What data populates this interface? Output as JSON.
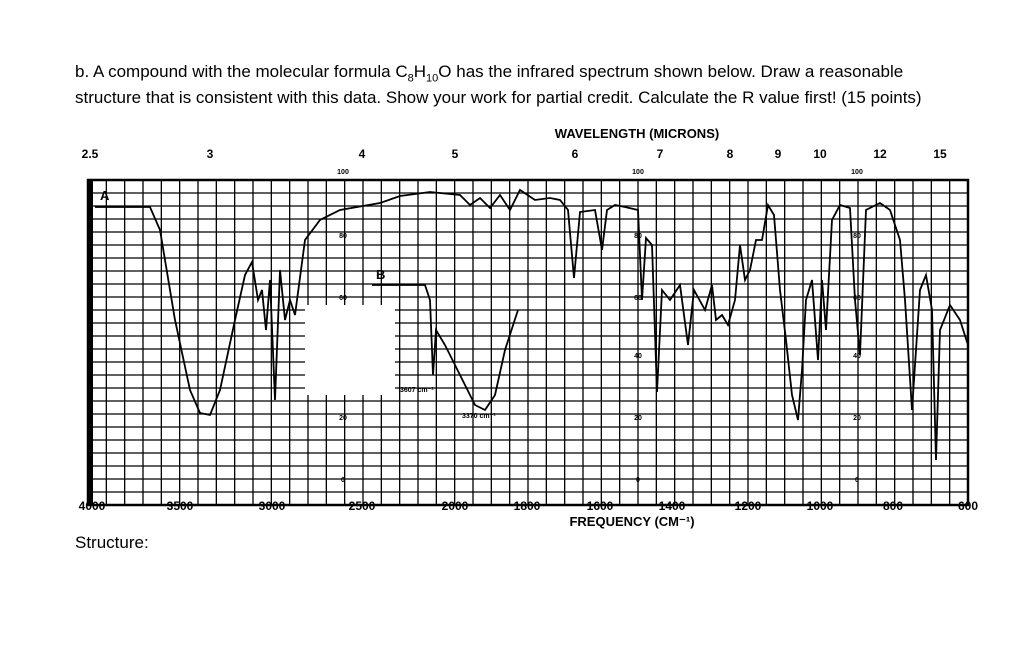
{
  "question": {
    "before": "b. A compound with the molecular formula",
    "formula": [
      "C",
      "8",
      "H",
      "10",
      "O"
    ],
    "after": "has the infrared spectrum shown below. Draw a reasonable structure that is consistent with this data. Show your work for partial credit. Calculate the R value first! (15 points)"
  },
  "spectrum": {
    "top_label": "WAVELENGTH (MICRONS)",
    "wavelength_ticks": [
      "2.5",
      "3",
      "4",
      "5",
      "6",
      "7",
      "8",
      "9",
      "10",
      "12",
      "15"
    ],
    "bottom_label": "FREQUENCY (CM⁻¹)",
    "frequency_ticks": [
      "4000",
      "3500",
      "3000",
      "2500",
      "2000",
      "1800",
      "1600",
      "1400",
      "1200",
      "1000",
      "800",
      "600"
    ],
    "transmittance_ticks": [
      "100",
      "80",
      "60",
      "40",
      "20",
      "0"
    ],
    "annotations": [
      "A",
      "B",
      "3607 cm⁻¹",
      "3370 cm⁻¹"
    ]
  },
  "footer": "Structure:"
}
